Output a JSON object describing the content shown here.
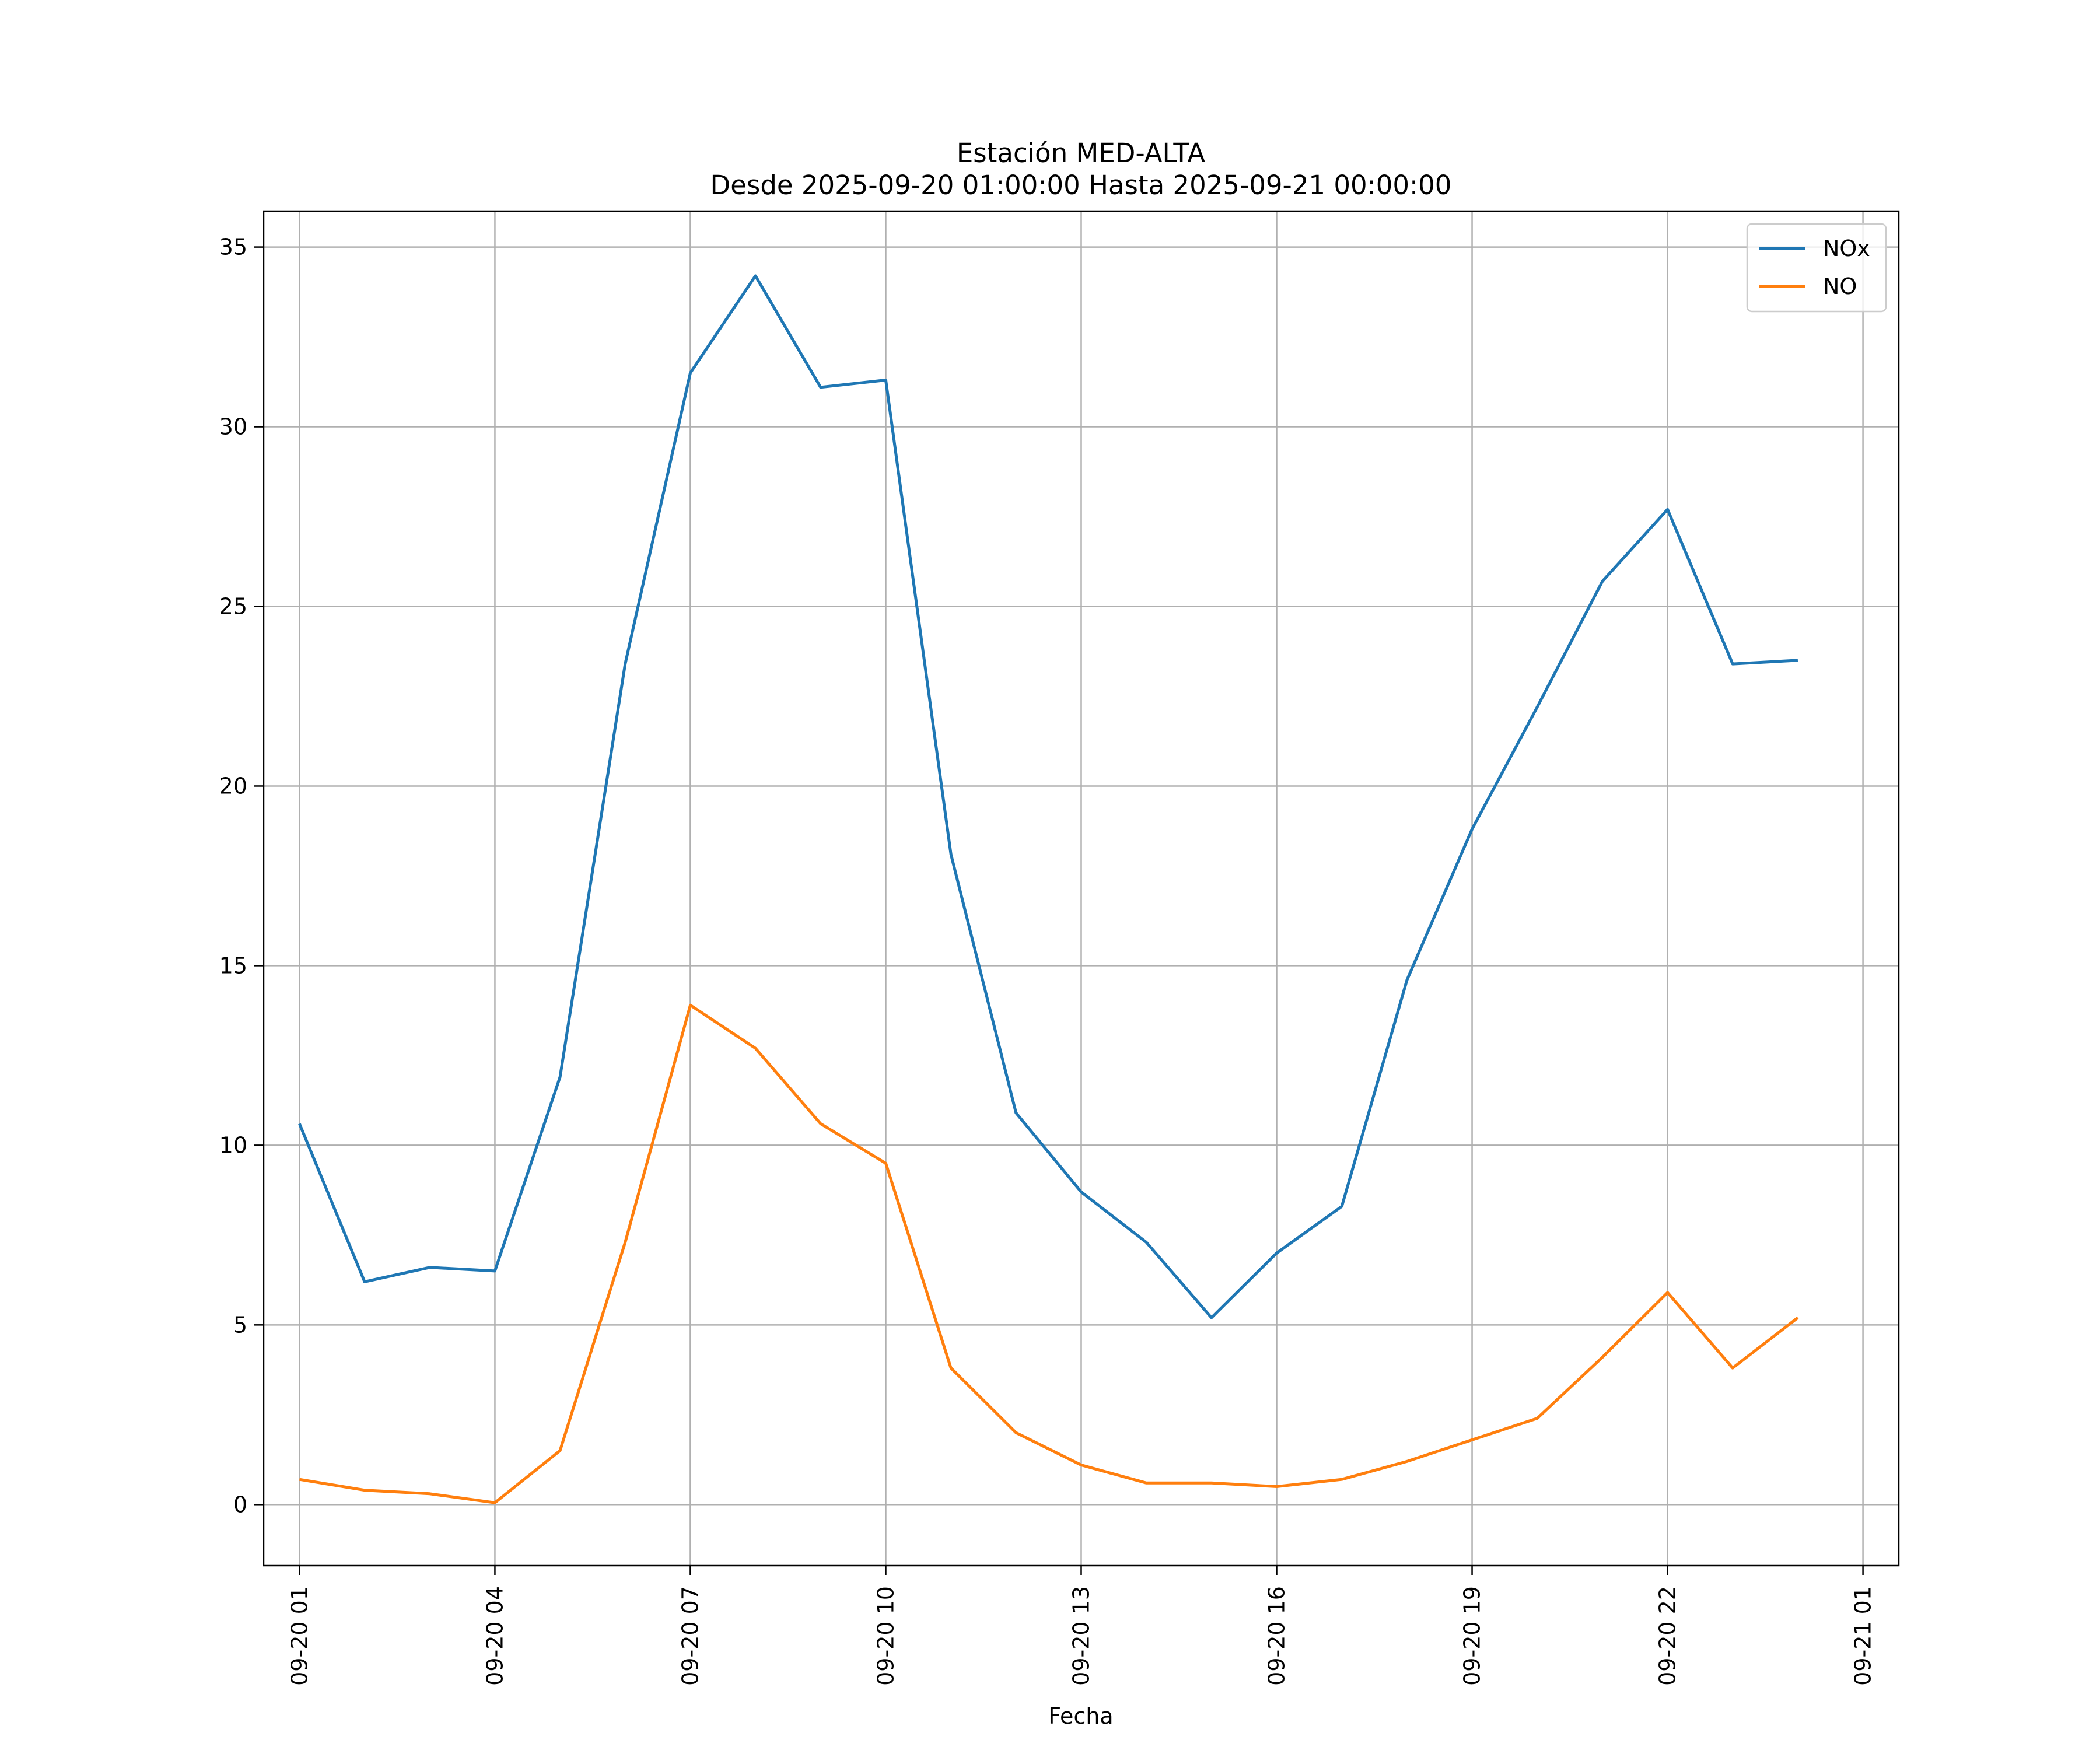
{
  "chart_data": {
    "type": "line",
    "title": "Estación MED-ALTA",
    "subtitle": "Desde 2025-09-20 01:00:00 Hasta 2025-09-21 00:00:00",
    "xlabel": "Fecha",
    "ylabel": "",
    "x": [
      "09-20 01",
      "09-20 02",
      "09-20 03",
      "09-20 04",
      "09-20 05",
      "09-20 06",
      "09-20 07",
      "09-20 08",
      "09-20 09",
      "09-20 10",
      "09-20 11",
      "09-20 12",
      "09-20 13",
      "09-20 14",
      "09-20 15",
      "09-20 16",
      "09-20 17",
      "09-20 18",
      "09-20 19",
      "09-20 20",
      "09-20 21",
      "09-20 22",
      "09-20 23",
      "09-21 00"
    ],
    "x_ticks": [
      "09-20 01",
      "09-20 04",
      "09-20 07",
      "09-20 10",
      "09-20 13",
      "09-20 16",
      "09-20 19",
      "09-20 22",
      "09-21 01"
    ],
    "y_ticks": [
      0,
      5,
      10,
      15,
      20,
      25,
      30,
      35
    ],
    "ylim": [
      -1.7,
      36
    ],
    "xlim_hours": [
      -0.55,
      24.55
    ],
    "grid": true,
    "legend_position": "top-right",
    "series": [
      {
        "name": "NOx",
        "color": "#1f77b4",
        "values": [
          10.6,
          6.2,
          6.6,
          6.5,
          11.9,
          23.4,
          31.5,
          34.2,
          31.1,
          31.3,
          18.1,
          10.9,
          8.7,
          7.3,
          5.2,
          7.0,
          8.3,
          14.6,
          18.8,
          22.2,
          25.7,
          27.7,
          23.4,
          23.5
        ]
      },
      {
        "name": "NO",
        "color": "#ff7f0e",
        "values": [
          0.7,
          0.4,
          0.3,
          0.05,
          1.5,
          7.3,
          13.9,
          12.7,
          10.6,
          9.5,
          3.8,
          2.0,
          1.1,
          0.6,
          0.6,
          0.5,
          0.7,
          1.2,
          1.8,
          2.4,
          4.1,
          5.9,
          3.8,
          5.2
        ]
      }
    ]
  }
}
